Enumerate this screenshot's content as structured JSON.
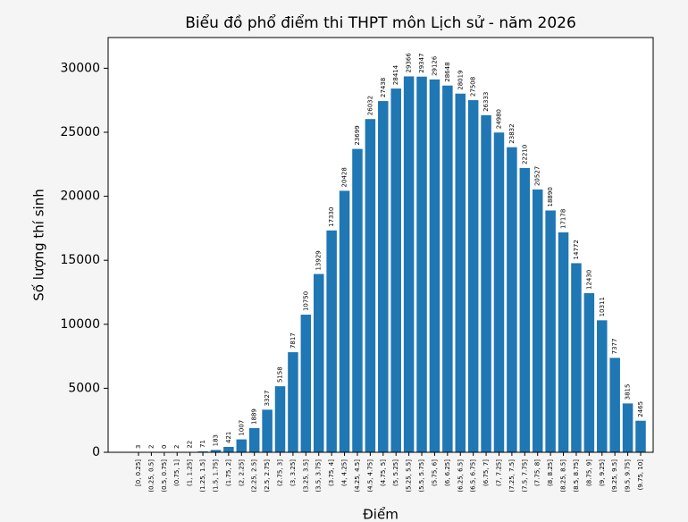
{
  "chart_data": {
    "type": "bar",
    "title": "Biểu đồ phổ điểm thi THPT môn Lịch sử - năm 2026",
    "x_label": "Điểm",
    "y_label": "Số lượng thí sinh",
    "color": "#1f77b4",
    "categories": [
      "[0, 0.25]",
      "(0.25, 0.5]",
      "(0.5, 0.75]",
      "(0.75, 1]",
      "(1, 1.25]",
      "(1.25, 1.5]",
      "(1.5, 1.75]",
      "(1.75, 2]",
      "(2, 2.25]",
      "(2.25, 2.5]",
      "(2.5, 2.75]",
      "(2.75, 3]",
      "(3, 3.25]",
      "(3.25, 3.5]",
      "(3.5, 3.75]",
      "(3.75, 4]",
      "(4, 4.25]",
      "(4.25, 4.5]",
      "(4.5, 4.75]",
      "(4.75, 5]",
      "(5, 5.25]",
      "(5.25, 5.5]",
      "(5.5, 5.75]",
      "(5.75, 6]",
      "(6, 6.25]",
      "(6.25, 6.5]",
      "(6.5, 6.75]",
      "(6.75, 7]",
      "(7, 7.25]",
      "(7.25, 7.5]",
      "(7.5, 7.75]",
      "(7.75, 8]",
      "(8, 8.25]",
      "(8.25, 8.5]",
      "(8.5, 8.75]",
      "(8.75, 9]",
      "(9, 9.25]",
      "(9.25, 9.5]",
      "(9.5, 9.75]",
      "(9.75, 10]"
    ],
    "values": [
      3,
      2,
      0,
      2,
      22,
      71,
      183,
      421,
      1007,
      1889,
      3327,
      5158,
      7817,
      10750,
      13929,
      17330,
      20428,
      23699,
      26032,
      27438,
      28414,
      29366,
      29347,
      29126,
      28648,
      28019,
      27508,
      26333,
      24980,
      23832,
      22210,
      20527,
      18890,
      17178,
      14772,
      12430,
      10311,
      7377,
      3815,
      2465
    ],
    "ylim": [
      0,
      32400
    ],
    "yticks": [
      0,
      5000,
      10000,
      15000,
      20000,
      25000,
      30000
    ],
    "grid": false
  }
}
